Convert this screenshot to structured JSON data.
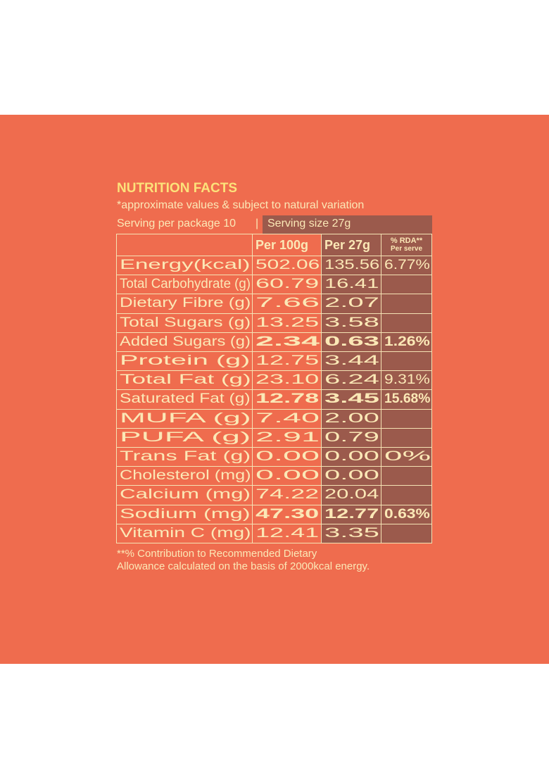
{
  "title": "NUTRITION FACTS",
  "subtitle": "*approximate values & subject to natural variation",
  "serving_per_package": "Serving per package 10",
  "separator": "|",
  "serving_size": "Serving size 27g",
  "table": {
    "headers": [
      "Per 100g",
      "Per 27g",
      "% RDA**",
      "Per serve"
    ],
    "rows": [
      {
        "label": "Energy(kcal)",
        "per_100g": "502.06",
        "per_27g": "135.56",
        "rda": "6.77%"
      },
      {
        "label": "Total Carbohydrate (g)",
        "per_100g": "60.79",
        "per_27g": "16.41"
      },
      {
        "label": "Dietary Fibre (g)",
        "per_100g": "7.66",
        "per_27g": "2.07"
      },
      {
        "label": "Total Sugars (g)",
        "per_100g": "13.25",
        "per_27g": "3.58"
      },
      {
        "label": "Added Sugars (g)",
        "per_100g": "2.34",
        "per_27g": "0.63",
        "rda": "1.26%",
        "bold": true
      },
      {
        "label": "Protein (g)",
        "per_100g": "12.75",
        "per_27g": "3.44"
      },
      {
        "label": "Total Fat (g)",
        "per_100g": "23.10",
        "per_27g": "6.24",
        "rda": "9.31%"
      },
      {
        "label": "Saturated Fat (g)",
        "per_100g": "12.78",
        "per_27g": "3.45",
        "rda": "15.68%",
        "bold": true
      },
      {
        "label": "MUFA (g)",
        "per_100g": "7.40",
        "per_27g": "2.00"
      },
      {
        "label": "PUFA (g)",
        "per_100g": "2.91",
        "per_27g": "0.79"
      },
      {
        "label": "Trans Fat (g)",
        "per_100g": "0.00",
        "per_27g": "0.00",
        "rda": "0%"
      },
      {
        "label": "Cholesterol (mg)",
        "per_100g": "0.00",
        "per_27g": "0.00"
      },
      {
        "label": "Calcium (mg)",
        "per_100g": "74.22",
        "per_27g": "20.04"
      },
      {
        "label": "Sodium (mg)",
        "per_100g": "47.30",
        "per_27g": "12.77",
        "rda": "0.63%",
        "bold": true
      },
      {
        "label": "Vitamin C (mg)",
        "per_100g": "12.41",
        "per_27g": "3.35"
      }
    ]
  },
  "footnote": [
    "**% Contribution to Recommended Dietary",
    "Allowance calculated on the basis of 2000kcal energy."
  ]
}
